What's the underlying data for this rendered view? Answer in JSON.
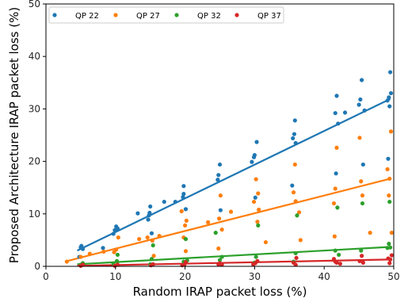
{
  "chart_data": {
    "type": "scatter",
    "xlabel": "Random IRAP packet loss (%)",
    "ylabel": "Proposed Architecture IRAP packet loss (%)",
    "xlim": [
      0,
      50
    ],
    "ylim": [
      0,
      50
    ],
    "xticks": [
      0,
      10,
      20,
      30,
      40,
      50
    ],
    "yticks": [
      0,
      10,
      20,
      30,
      40,
      50
    ],
    "legend_position": "top",
    "grid": false,
    "series": [
      {
        "name": "QP 22",
        "color": "#1f77b4",
        "trend": [
          [
            4.5,
            3.0
          ],
          [
            49.5,
            31.9
          ]
        ],
        "points": [
          [
            4.8,
            1.8
          ],
          [
            5.0,
            3.6
          ],
          [
            5.1,
            3.9
          ],
          [
            5.3,
            3.3
          ],
          [
            8.2,
            3.5
          ],
          [
            9.7,
            6.2
          ],
          [
            9.9,
            6.9
          ],
          [
            10.1,
            7.6
          ],
          [
            10.3,
            7.2
          ],
          [
            13.2,
            10.1
          ],
          [
            14.7,
            8.9
          ],
          [
            14.8,
            9.7
          ],
          [
            14.9,
            10.2
          ],
          [
            15.0,
            11.4
          ],
          [
            15.2,
            6.3
          ],
          [
            17.0,
            12.3
          ],
          [
            18.6,
            12.3
          ],
          [
            19.7,
            13.2
          ],
          [
            19.8,
            13.8
          ],
          [
            19.8,
            15.3
          ],
          [
            20.1,
            10.9
          ],
          [
            24.7,
            16.5
          ],
          [
            24.8,
            17.4
          ],
          [
            25.0,
            19.4
          ],
          [
            25.1,
            10.7
          ],
          [
            29.6,
            19.9
          ],
          [
            29.9,
            20.8
          ],
          [
            30.0,
            21.2
          ],
          [
            30.1,
            13.1
          ],
          [
            30.3,
            23.7
          ],
          [
            35.5,
            24.4
          ],
          [
            35.7,
            25.2
          ],
          [
            35.8,
            27.8
          ],
          [
            35.9,
            23.5
          ],
          [
            35.4,
            15.4
          ],
          [
            41.6,
            29.2
          ],
          [
            41.8,
            32.5
          ],
          [
            42.0,
            27.2
          ],
          [
            41.7,
            17.7
          ],
          [
            43.0,
            29.3
          ],
          [
            45.0,
            30.8
          ],
          [
            45.2,
            31.8
          ],
          [
            45.4,
            35.5
          ],
          [
            45.6,
            19.4
          ],
          [
            45.8,
            29.7
          ],
          [
            49.1,
            31.6
          ],
          [
            49.3,
            32.2
          ],
          [
            49.5,
            37.0
          ],
          [
            49.4,
            30.5
          ],
          [
            49.6,
            33.0
          ],
          [
            49.2,
            20.5
          ]
        ]
      },
      {
        "name": "QP 27",
        "color": "#ff7f0e",
        "trend": [
          [
            3.0,
            1.0
          ],
          [
            49.5,
            16.7
          ]
        ],
        "points": [
          [
            3.0,
            0.9
          ],
          [
            5.0,
            1.8
          ],
          [
            6.3,
            2.4
          ],
          [
            8.3,
            2.8
          ],
          [
            9.8,
            2.7
          ],
          [
            10.1,
            3.2
          ],
          [
            10.4,
            5.5
          ],
          [
            13.4,
            5.2
          ],
          [
            14.6,
            5.5
          ],
          [
            15.3,
            4.9
          ],
          [
            15.5,
            2.0
          ],
          [
            16.3,
            5.8
          ],
          [
            19.5,
            10.5
          ],
          [
            19.8,
            5.5
          ],
          [
            20.0,
            7.8
          ],
          [
            20.2,
            8.7
          ],
          [
            20.1,
            2.9
          ],
          [
            23.3,
            8.4
          ],
          [
            24.9,
            9.1
          ],
          [
            25.1,
            13.5
          ],
          [
            25.3,
            7.0
          ],
          [
            24.8,
            3.4
          ],
          [
            26.6,
            10.4
          ],
          [
            29.9,
            12.3
          ],
          [
            30.2,
            16.6
          ],
          [
            30.5,
            13.9
          ],
          [
            30.4,
            8.5
          ],
          [
            30.6,
            10.8
          ],
          [
            31.6,
            4.6
          ],
          [
            35.6,
            14.1
          ],
          [
            35.8,
            19.4
          ],
          [
            35.9,
            12.4
          ],
          [
            36.4,
            10.3
          ],
          [
            36.6,
            5.0
          ],
          [
            41.4,
            12.0
          ],
          [
            41.6,
            14.8
          ],
          [
            41.8,
            22.6
          ],
          [
            41.5,
            5.7
          ],
          [
            45.1,
            24.5
          ],
          [
            45.3,
            16.2
          ],
          [
            45.5,
            13.5
          ],
          [
            46.6,
            6.4
          ],
          [
            49.1,
            18.5
          ],
          [
            49.3,
            13.5
          ],
          [
            49.6,
            25.7
          ],
          [
            49.4,
            16.7
          ],
          [
            49.7,
            6.4
          ]
        ]
      },
      {
        "name": "QP 32",
        "color": "#2ca02c",
        "trend": [
          [
            4.5,
            0.4
          ],
          [
            49.5,
            3.7
          ]
        ],
        "points": [
          [
            5.0,
            0.3
          ],
          [
            5.3,
            0.6
          ],
          [
            9.7,
            0.5
          ],
          [
            10.2,
            1.0
          ],
          [
            10.3,
            2.2
          ],
          [
            15.0,
            0.4
          ],
          [
            15.2,
            1.4
          ],
          [
            15.4,
            4.0
          ],
          [
            19.8,
            0.9
          ],
          [
            20.1,
            5.2
          ],
          [
            20.3,
            1.1
          ],
          [
            24.4,
            6.4
          ],
          [
            25.0,
            1.2
          ],
          [
            25.3,
            1.8
          ],
          [
            30.0,
            0.7
          ],
          [
            30.2,
            1.8
          ],
          [
            30.5,
            7.8
          ],
          [
            35.6,
            0.9
          ],
          [
            35.9,
            2.5
          ],
          [
            36.1,
            9.7
          ],
          [
            41.6,
            3.0
          ],
          [
            41.9,
            11.2
          ],
          [
            42.1,
            2.2
          ],
          [
            45.3,
            3.0
          ],
          [
            45.5,
            12.0
          ],
          [
            49.1,
            3.5
          ],
          [
            49.3,
            4.3
          ],
          [
            49.5,
            3.6
          ],
          [
            49.4,
            12.3
          ]
        ]
      },
      {
        "name": "QP 37",
        "color": "#d62728",
        "trend": [
          [
            4.5,
            0.1
          ],
          [
            49.5,
            1.3
          ]
        ],
        "points": [
          [
            5.0,
            0.1
          ],
          [
            5.3,
            0.3
          ],
          [
            9.9,
            0.1
          ],
          [
            10.3,
            0.3
          ],
          [
            15.1,
            0.2
          ],
          [
            15.4,
            0.4
          ],
          [
            19.6,
            0.2
          ],
          [
            19.9,
            0.3
          ],
          [
            20.1,
            0.8
          ],
          [
            24.8,
            0.4
          ],
          [
            25.0,
            0.6
          ],
          [
            25.3,
            0.3
          ],
          [
            29.8,
            0.4
          ],
          [
            30.1,
            0.6
          ],
          [
            30.4,
            1.0
          ],
          [
            35.6,
            0.7
          ],
          [
            35.9,
            0.3
          ],
          [
            36.0,
            1.6
          ],
          [
            41.4,
            1.4
          ],
          [
            41.6,
            0.9
          ],
          [
            41.8,
            0.7
          ],
          [
            42.3,
            0.5
          ],
          [
            45.1,
            1.0
          ],
          [
            45.4,
            2.0
          ],
          [
            45.6,
            0.7
          ],
          [
            49.2,
            1.5
          ],
          [
            49.4,
            0.6
          ],
          [
            49.7,
            2.1
          ],
          [
            49.5,
            1.3
          ]
        ]
      }
    ]
  }
}
